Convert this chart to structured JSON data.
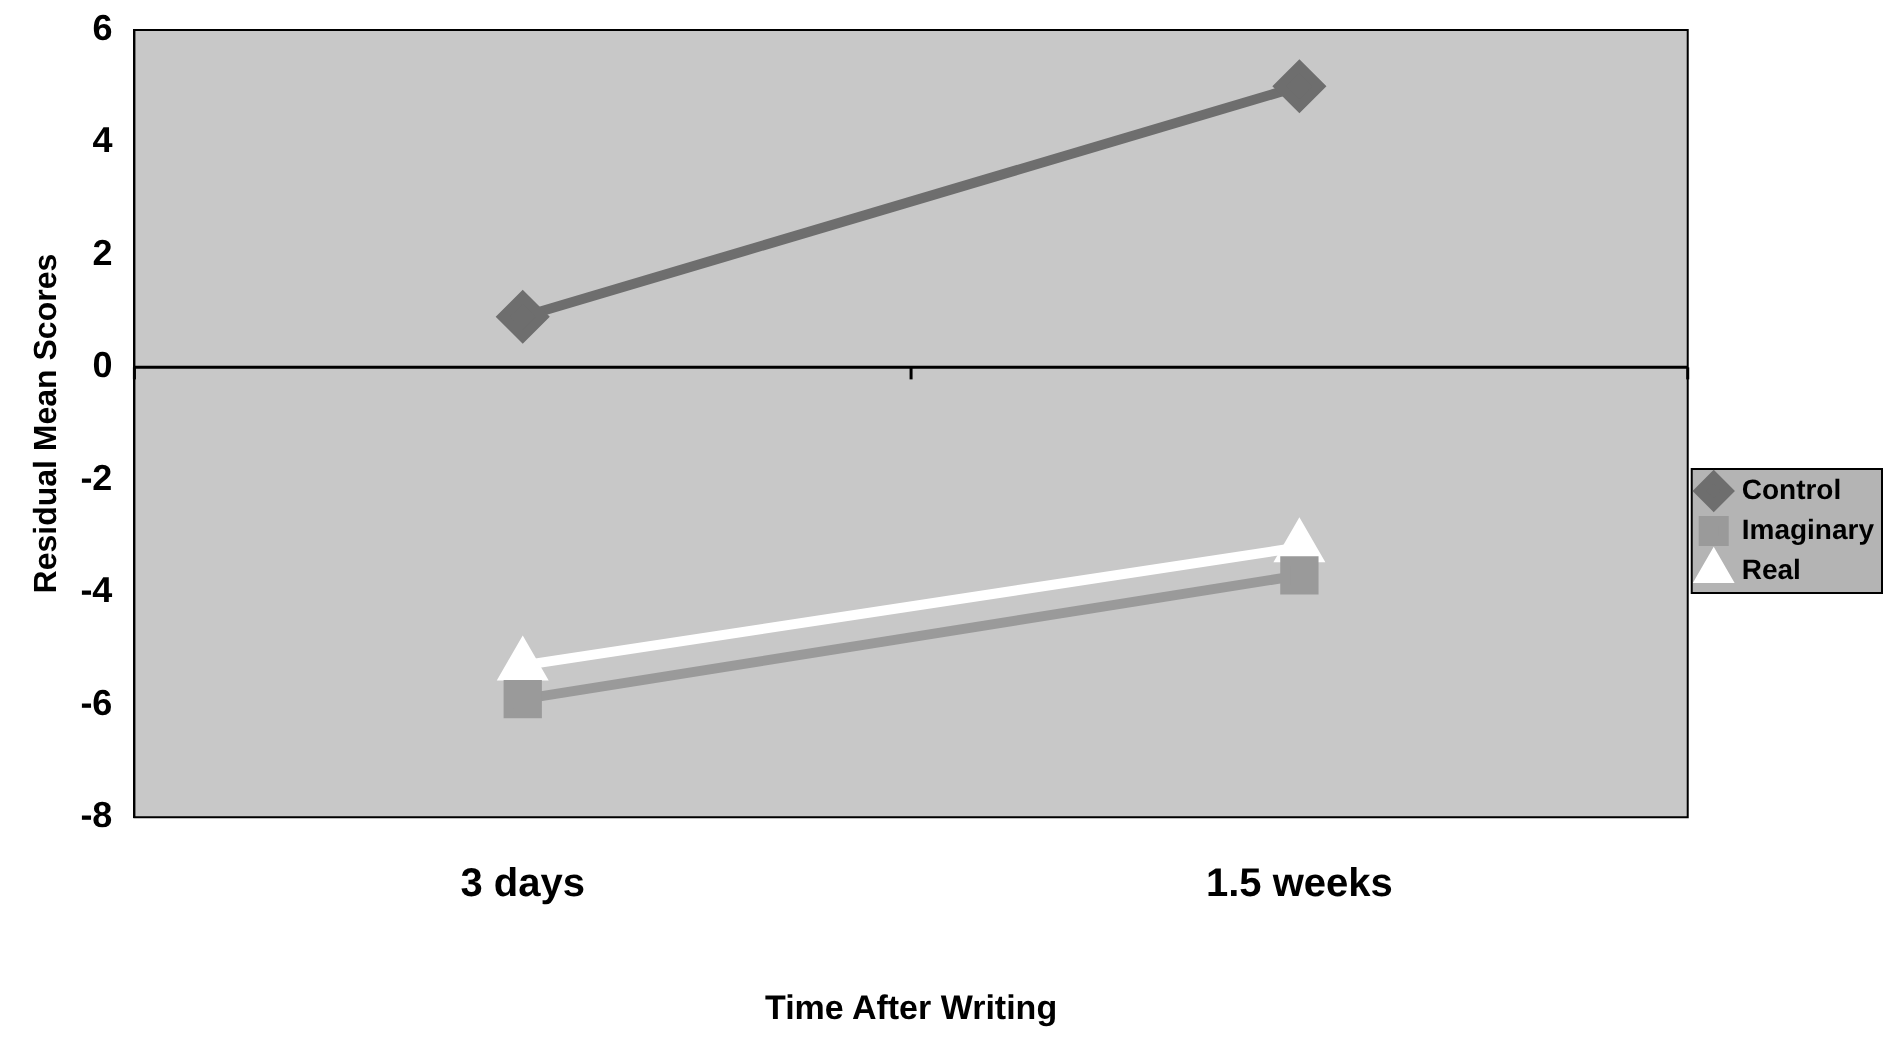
{
  "chart_data": {
    "type": "line",
    "xlabel": "Time After Writing",
    "ylabel": "Residual Mean Scores",
    "categories": [
      "3 days",
      "1.5 weeks"
    ],
    "series": [
      {
        "name": "Control",
        "color": "#6e6e6e",
        "marker": "diamond",
        "values": [
          0.9,
          5.0
        ]
      },
      {
        "name": "Imaginary",
        "color": "#9a9a9a",
        "marker": "square",
        "values": [
          -5.9,
          -3.7
        ]
      },
      {
        "name": "Real",
        "color": "#ffffff",
        "marker": "triangle",
        "values": [
          -5.3,
          -3.2
        ]
      }
    ],
    "ylim": [
      -8,
      6
    ],
    "yticks": [
      -8,
      -6,
      -4,
      -2,
      0,
      2,
      4,
      6
    ],
    "grid": false,
    "legend": "right",
    "line_style": "solid",
    "ref_lines": [
      {
        "axis": "y",
        "value": 0,
        "color": "#000000"
      }
    ]
  }
}
